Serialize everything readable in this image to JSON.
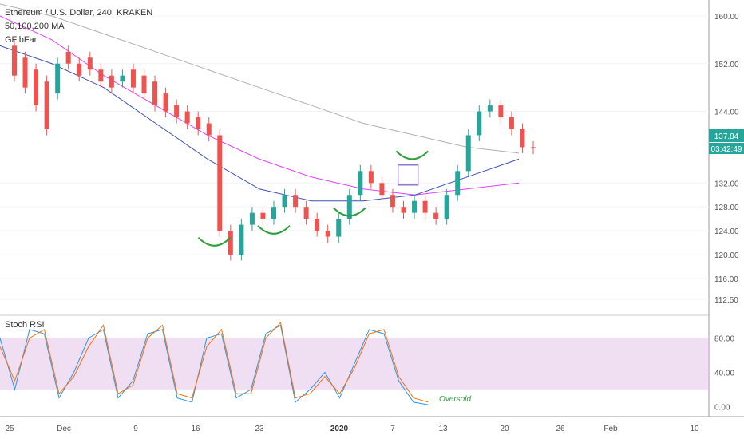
{
  "header": {
    "title": "Ethereum / U.S. Dollar, 240, KRAKEN",
    "indicator_1": "50,100,200 MA",
    "indicator_2": "GFibFan"
  },
  "price_badges": {
    "last_price": "137.84",
    "countdown": "03:42:49",
    "color": "#26a69a"
  },
  "chart_data": [
    {
      "type": "candlestick",
      "title": "Ethereum / U.S. Dollar, 240, KRAKEN",
      "price_axis_ticks": [
        160,
        152,
        144,
        137.84,
        132,
        128,
        124,
        120,
        116,
        112.5
      ],
      "price_axis_labels": [
        "160.00",
        "152.00",
        "144.00",
        "132.00",
        "128.00",
        "124.00",
        "120.00",
        "116.00",
        "112.50"
      ],
      "ylim": [
        110.5,
        162
      ],
      "last_price": 137.84,
      "date_axis_labels": [
        "25",
        "Dec",
        "9",
        "16",
        "23",
        "2020",
        "7",
        "13",
        "20",
        "26",
        "Feb",
        "10"
      ],
      "candle_colors": {
        "up": "#26a69a",
        "down": "#ef5350"
      },
      "ohlc_path": [
        [
          155,
          150
        ],
        [
          153,
          148
        ],
        [
          151,
          145
        ],
        [
          149,
          141
        ],
        [
          147,
          152
        ],
        [
          154,
          152
        ],
        [
          152,
          150
        ],
        [
          153,
          151
        ],
        [
          151,
          149
        ],
        [
          150,
          148
        ],
        [
          149,
          150
        ],
        [
          151,
          148
        ],
        [
          150,
          147
        ],
        [
          149,
          145
        ],
        [
          147,
          144
        ],
        [
          145,
          143
        ],
        [
          144,
          142
        ],
        [
          143,
          141
        ],
        [
          142,
          140
        ],
        [
          140,
          124
        ],
        [
          124,
          120
        ],
        [
          120,
          125
        ],
        [
          125,
          127
        ],
        [
          127,
          126
        ],
        [
          126,
          128
        ],
        [
          128,
          130
        ],
        [
          130,
          128
        ],
        [
          128,
          126
        ],
        [
          126,
          124
        ],
        [
          124,
          123
        ],
        [
          123,
          126
        ],
        [
          126,
          130
        ],
        [
          130,
          134
        ],
        [
          134,
          132
        ],
        [
          132,
          130
        ],
        [
          130,
          128
        ],
        [
          128,
          127
        ],
        [
          127,
          129
        ],
        [
          129,
          127
        ],
        [
          127,
          126
        ],
        [
          126,
          130
        ],
        [
          130,
          134
        ],
        [
          134,
          140
        ],
        [
          140,
          144
        ],
        [
          144,
          145
        ],
        [
          145,
          143
        ],
        [
          143,
          141
        ],
        [
          141,
          138
        ],
        [
          138,
          137.84
        ]
      ],
      "moving_averages": [
        {
          "color": "#b0b0b0",
          "values": [
            162,
            160,
            157,
            154,
            151,
            148,
            145,
            142,
            140,
            138,
            137
          ]
        },
        {
          "color": "#e040fb",
          "values": [
            160,
            156,
            150,
            145,
            140,
            136,
            133,
            131,
            130,
            131,
            132
          ]
        },
        {
          "color": "#3f51b5",
          "values": [
            155,
            152,
            148,
            142,
            136,
            131,
            129,
            129,
            130,
            133,
            136
          ]
        }
      ],
      "shapes": [
        {
          "type": "arc",
          "color": "#2e9e3e",
          "at": [
            18.5,
            121.5
          ]
        },
        {
          "type": "arc",
          "color": "#2e9e3e",
          "at": [
            24,
            123.5
          ]
        },
        {
          "type": "arc",
          "color": "#2e9e3e",
          "at": [
            31,
            126.5
          ]
        },
        {
          "type": "arc",
          "color": "#2e9e3e",
          "at": [
            36.8,
            136
          ]
        },
        {
          "type": "rect",
          "color": "#5e35b1",
          "at": [
            35.5,
            135
          ]
        }
      ]
    },
    {
      "type": "line",
      "title": "Stoch RSI",
      "ylabel": "",
      "ylim": [
        -10,
        102
      ],
      "band": [
        20,
        80
      ],
      "band_color": "#e1bee7",
      "tick_labels": [
        "80.00",
        "40.00",
        "0.00"
      ],
      "series": [
        {
          "color": "#2196f3",
          "values": [
            80,
            20,
            90,
            85,
            10,
            40,
            80,
            90,
            10,
            30,
            85,
            90,
            10,
            5,
            80,
            85,
            10,
            20,
            85,
            95,
            5,
            20,
            40,
            10,
            50,
            90,
            85,
            30,
            5,
            2
          ]
        },
        {
          "color": "#ff6d00",
          "values": [
            70,
            30,
            80,
            90,
            15,
            35,
            70,
            95,
            15,
            25,
            80,
            95,
            15,
            10,
            70,
            90,
            15,
            15,
            80,
            98,
            10,
            15,
            35,
            15,
            45,
            85,
            90,
            35,
            10,
            5
          ]
        }
      ],
      "annotations": [
        "Oversold"
      ]
    }
  ],
  "stoch": {
    "title": "Stoch RSI",
    "annotation": "Oversold",
    "annotation_color": "#2e9e3e"
  }
}
